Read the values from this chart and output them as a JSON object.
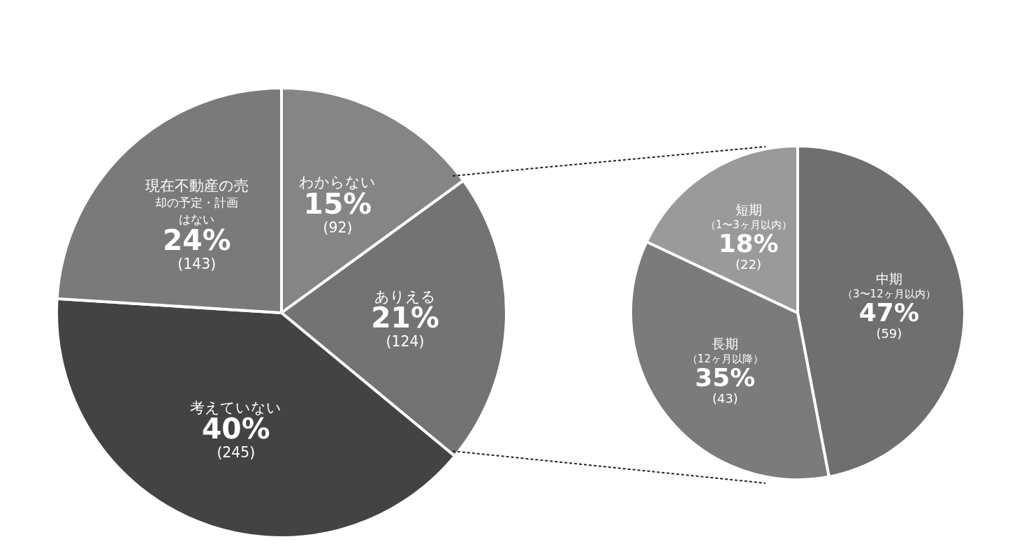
{
  "chart_data": [
    {
      "type": "pie",
      "categories": [
        "わからない",
        "ありえる",
        "考えていない",
        "現在不動産の売却の予定・計画はない"
      ],
      "values": [
        15,
        21,
        40,
        24
      ],
      "value_labels": [
        "15%\n(92)",
        "21%\n(124)",
        "40%\n(245)",
        "24%\n(143)"
      ],
      "colors": [
        "#858585",
        "#737373",
        "#434343",
        "#7a7a7a"
      ]
    },
    {
      "type": "pie",
      "categories": [
        "中期（3〜12ヶ月以内）",
        "長期（12ヶ月以降）",
        "短期（1〜3ヶ月以内）"
      ],
      "values": [
        47,
        35,
        18
      ],
      "value_labels": [
        "47%\n(59)",
        "35%\n(43)",
        "18%\n(22)"
      ],
      "colors": [
        "#6f6f6f",
        "#7b7b7b",
        "#9a9a9a"
      ]
    }
  ]
}
